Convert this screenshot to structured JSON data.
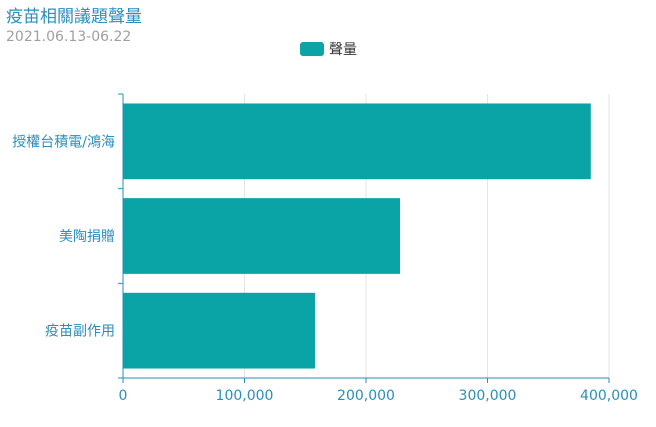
{
  "title": "疫苗相關議題聲量",
  "subtitle": "2021.06.13-06.22",
  "colors": {
    "bar": "#0aa3a6",
    "axis": "#2a8fbd",
    "grid": "#e6e6e6",
    "title": "#2a8fbd"
  },
  "legend": {
    "label": "聲量",
    "icon": "rounded-rect-swatch"
  },
  "chart_data": {
    "type": "bar",
    "orientation": "horizontal",
    "categories": [
      "授權台積電/鴻海",
      "美陶捐贈",
      "疫苗副作用"
    ],
    "series": [
      {
        "name": "聲量",
        "values": [
          385000,
          228000,
          158000
        ]
      }
    ],
    "xlim": [
      0,
      400000
    ],
    "xticks": [
      0,
      100000,
      200000,
      300000,
      400000
    ],
    "xtick_labels": [
      "0",
      "100,000",
      "200,000",
      "300,000",
      "400,000"
    ],
    "grid": true,
    "legend_position": "top-center"
  }
}
